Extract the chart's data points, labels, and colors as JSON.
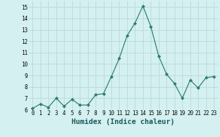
{
  "x": [
    0,
    1,
    2,
    3,
    4,
    5,
    6,
    7,
    8,
    9,
    10,
    11,
    12,
    13,
    14,
    15,
    16,
    17,
    18,
    19,
    20,
    21,
    22,
    23
  ],
  "y": [
    6.1,
    6.5,
    6.2,
    7.0,
    6.3,
    6.9,
    6.4,
    6.4,
    7.3,
    7.4,
    8.9,
    10.5,
    12.5,
    13.6,
    15.1,
    13.3,
    10.7,
    9.1,
    8.3,
    7.0,
    8.6,
    7.9,
    8.8,
    8.9
  ],
  "line_color": "#2e7d6e",
  "marker": "D",
  "marker_size": 2.2,
  "bg_color": "#d4f0f0",
  "grid_color": "#b8d8d8",
  "xlabel": "Humidex (Indice chaleur)",
  "ylim": [
    6,
    15.5
  ],
  "yticks": [
    6,
    7,
    8,
    9,
    10,
    11,
    12,
    13,
    14,
    15
  ],
  "xticks": [
    0,
    1,
    2,
    3,
    4,
    5,
    6,
    7,
    8,
    9,
    10,
    11,
    12,
    13,
    14,
    15,
    16,
    17,
    18,
    19,
    20,
    21,
    22,
    23
  ],
  "tick_label_fontsize": 5.5,
  "xlabel_fontsize": 7.5,
  "linewidth": 0.9
}
